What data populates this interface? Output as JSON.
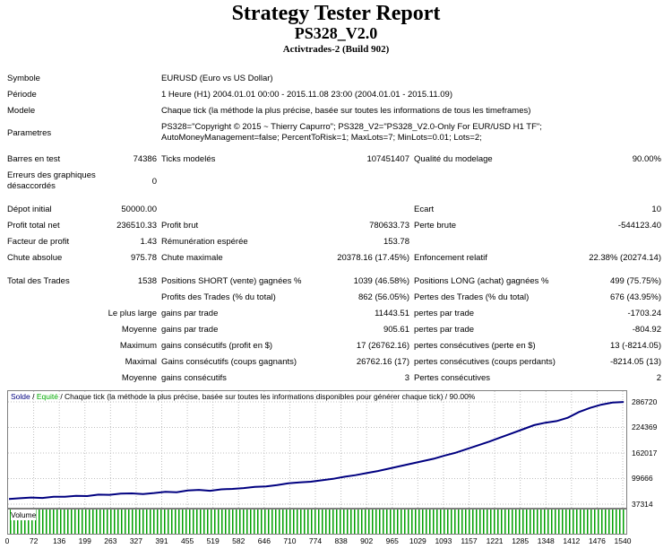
{
  "header": {
    "title": "Strategy Tester Report",
    "subtitle": "PS328_V2.0",
    "server": "Activtrades-2 (Build 902)"
  },
  "info": {
    "symbole_label": "Symbole",
    "symbole_value": "EURUSD (Euro vs US Dollar)",
    "periode_label": "Période",
    "periode_value": "1 Heure (H1) 2004.01.01 00:00 - 2015.11.08 23:00 (2004.01.01 - 2015.11.09)",
    "modele_label": "Modele",
    "modele_value": "Chaque tick (la méthode la plus précise, basée sur toutes les informations de tous les timeframes)",
    "parametres_label": "Parametres",
    "parametres_line1": "PS328=\"Copyright © 2015 ~ Thierry Capurro\"; PS328_V2=\"PS328_V2.0-Only For EUR/USD H1 TF\";",
    "parametres_line2": "AutoMoneyManagement=false; PercentToRisk=1; MaxLots=7; MinLots=0.01; Lots=2;"
  },
  "stats": {
    "barres_label": "Barres en test",
    "barres_value": "74386",
    "ticks_label": "Ticks modelés",
    "ticks_value": "107451407",
    "qualite_label": "Qualité du modelage",
    "qualite_value": "90.00%",
    "erreurs_label1": "Erreurs des graphiques",
    "erreurs_label2": "désaccordés",
    "erreurs_value": "0",
    "depot_label": "Dépot initial",
    "depot_value": "50000.00",
    "ecart_label": "Ecart",
    "ecart_value": "10",
    "profit_net_label": "Profit total net",
    "profit_net_value": "236510.33",
    "profit_brut_label": "Profit brut",
    "profit_brut_value": "780633.73",
    "perte_brute_label": "Perte brute",
    "perte_brute_value": "-544123.40",
    "facteur_label": "Facteur de profit",
    "facteur_value": "1.43",
    "remuneration_label": "Rémunération espérée",
    "remuneration_value": "153.78",
    "chute_abs_label": "Chute absolue",
    "chute_abs_value": "975.78",
    "chute_max_label": "Chute maximale",
    "chute_max_value": "20378.16 (17.45%)",
    "enfoncement_label": "Enfoncement relatif",
    "enfoncement_value": "22.38% (20274.14)",
    "total_trades_label": "Total des Trades",
    "total_trades_value": "1538",
    "short_label": "Positions SHORT (vente) gagnées %",
    "short_value": "1039 (46.58%)",
    "long_label": "Positions LONG (achat) gagnées %",
    "long_value": "499 (75.75%)",
    "profits_trades_label": "Profits des Trades (% du total)",
    "profits_trades_value": "862 (56.05%)",
    "pertes_trades_label": "Pertes des Trades (% du total)",
    "pertes_trades_value": "676 (43.95%)",
    "plus_large_label": "Le plus large",
    "gains_par_trade_label": "gains par trade",
    "gains_large_value": "11443.51",
    "pertes_par_trade_label": "pertes par trade",
    "pertes_large_value": "-1703.24",
    "moyenne_label": "Moyenne",
    "gains_moy_value": "905.61",
    "pertes_moy_value": "-804.92",
    "maximum_label": "Maximum",
    "gains_consec_profit_label": "gains consécutifs (profit en $)",
    "gains_consec_profit_value": "17 (26762.16)",
    "pertes_consec_perte_label": "pertes consécutives (perte en $)",
    "pertes_consec_perte_value": "13 (-8214.05)",
    "maximal_label": "Maximal",
    "gains_consec_coups_label": "Gains consécutifs (coups gagnants)",
    "gains_consec_coups_value": "26762.16 (17)",
    "pertes_consec_coups_label": "pertes consécutives (coups perdants)",
    "pertes_consec_coups_value": "-8214.05 (13)",
    "moyenne2_label": "Moyenne",
    "gains_consec_label": "gains consécutifs",
    "gains_consec_value": "3",
    "pertes_consec_label": "Pertes consécutives",
    "pertes_consec_value": "2"
  },
  "chart_legend": {
    "solde": "Solde",
    "sep1": " / ",
    "equite": "Equité",
    "rest": " / Chaque tick (la méthode la plus précise, basée sur toutes les informations disponibles pour générer chaque tick) / 90.00%"
  },
  "volume_label": "Volume",
  "colors": {
    "balance": "#000080",
    "equity": "#00aa00",
    "volume": "#00a000",
    "grid": "#bfbfbf"
  },
  "chart_data": {
    "type": "line",
    "title": "",
    "series": [
      {
        "name": "Solde",
        "values": [
          50000,
          51800,
          53500,
          52500,
          55500,
          55200,
          57400,
          57000,
          60500,
          60000,
          63000,
          63500,
          62000,
          64500,
          67500,
          66500,
          70500,
          72000,
          70000,
          73500,
          74500,
          76500,
          79500,
          80500,
          84000,
          88000,
          90500,
          92000,
          95500,
          99000,
          104000,
          108000,
          113000,
          118000,
          124000,
          130000,
          136000,
          142000,
          148000,
          156000,
          163000,
          172000,
          181000,
          190000,
          200000,
          210000,
          220000,
          230000,
          236000,
          240000,
          248000,
          262000,
          272000,
          280000,
          285000,
          286510
        ]
      }
    ],
    "ylim": [
      37314,
      286720
    ],
    "yticks": [
      "286720",
      "224369",
      "162017",
      "99666",
      "37314"
    ],
    "xticks": [
      "0",
      "72",
      "136",
      "199",
      "263",
      "327",
      "391",
      "455",
      "519",
      "582",
      "646",
      "710",
      "774",
      "838",
      "902",
      "965",
      "1029",
      "1093",
      "1157",
      "1221",
      "1285",
      "1348",
      "1412",
      "1476",
      "1540"
    ],
    "xlim": [
      0,
      1570
    ],
    "grid": true
  }
}
